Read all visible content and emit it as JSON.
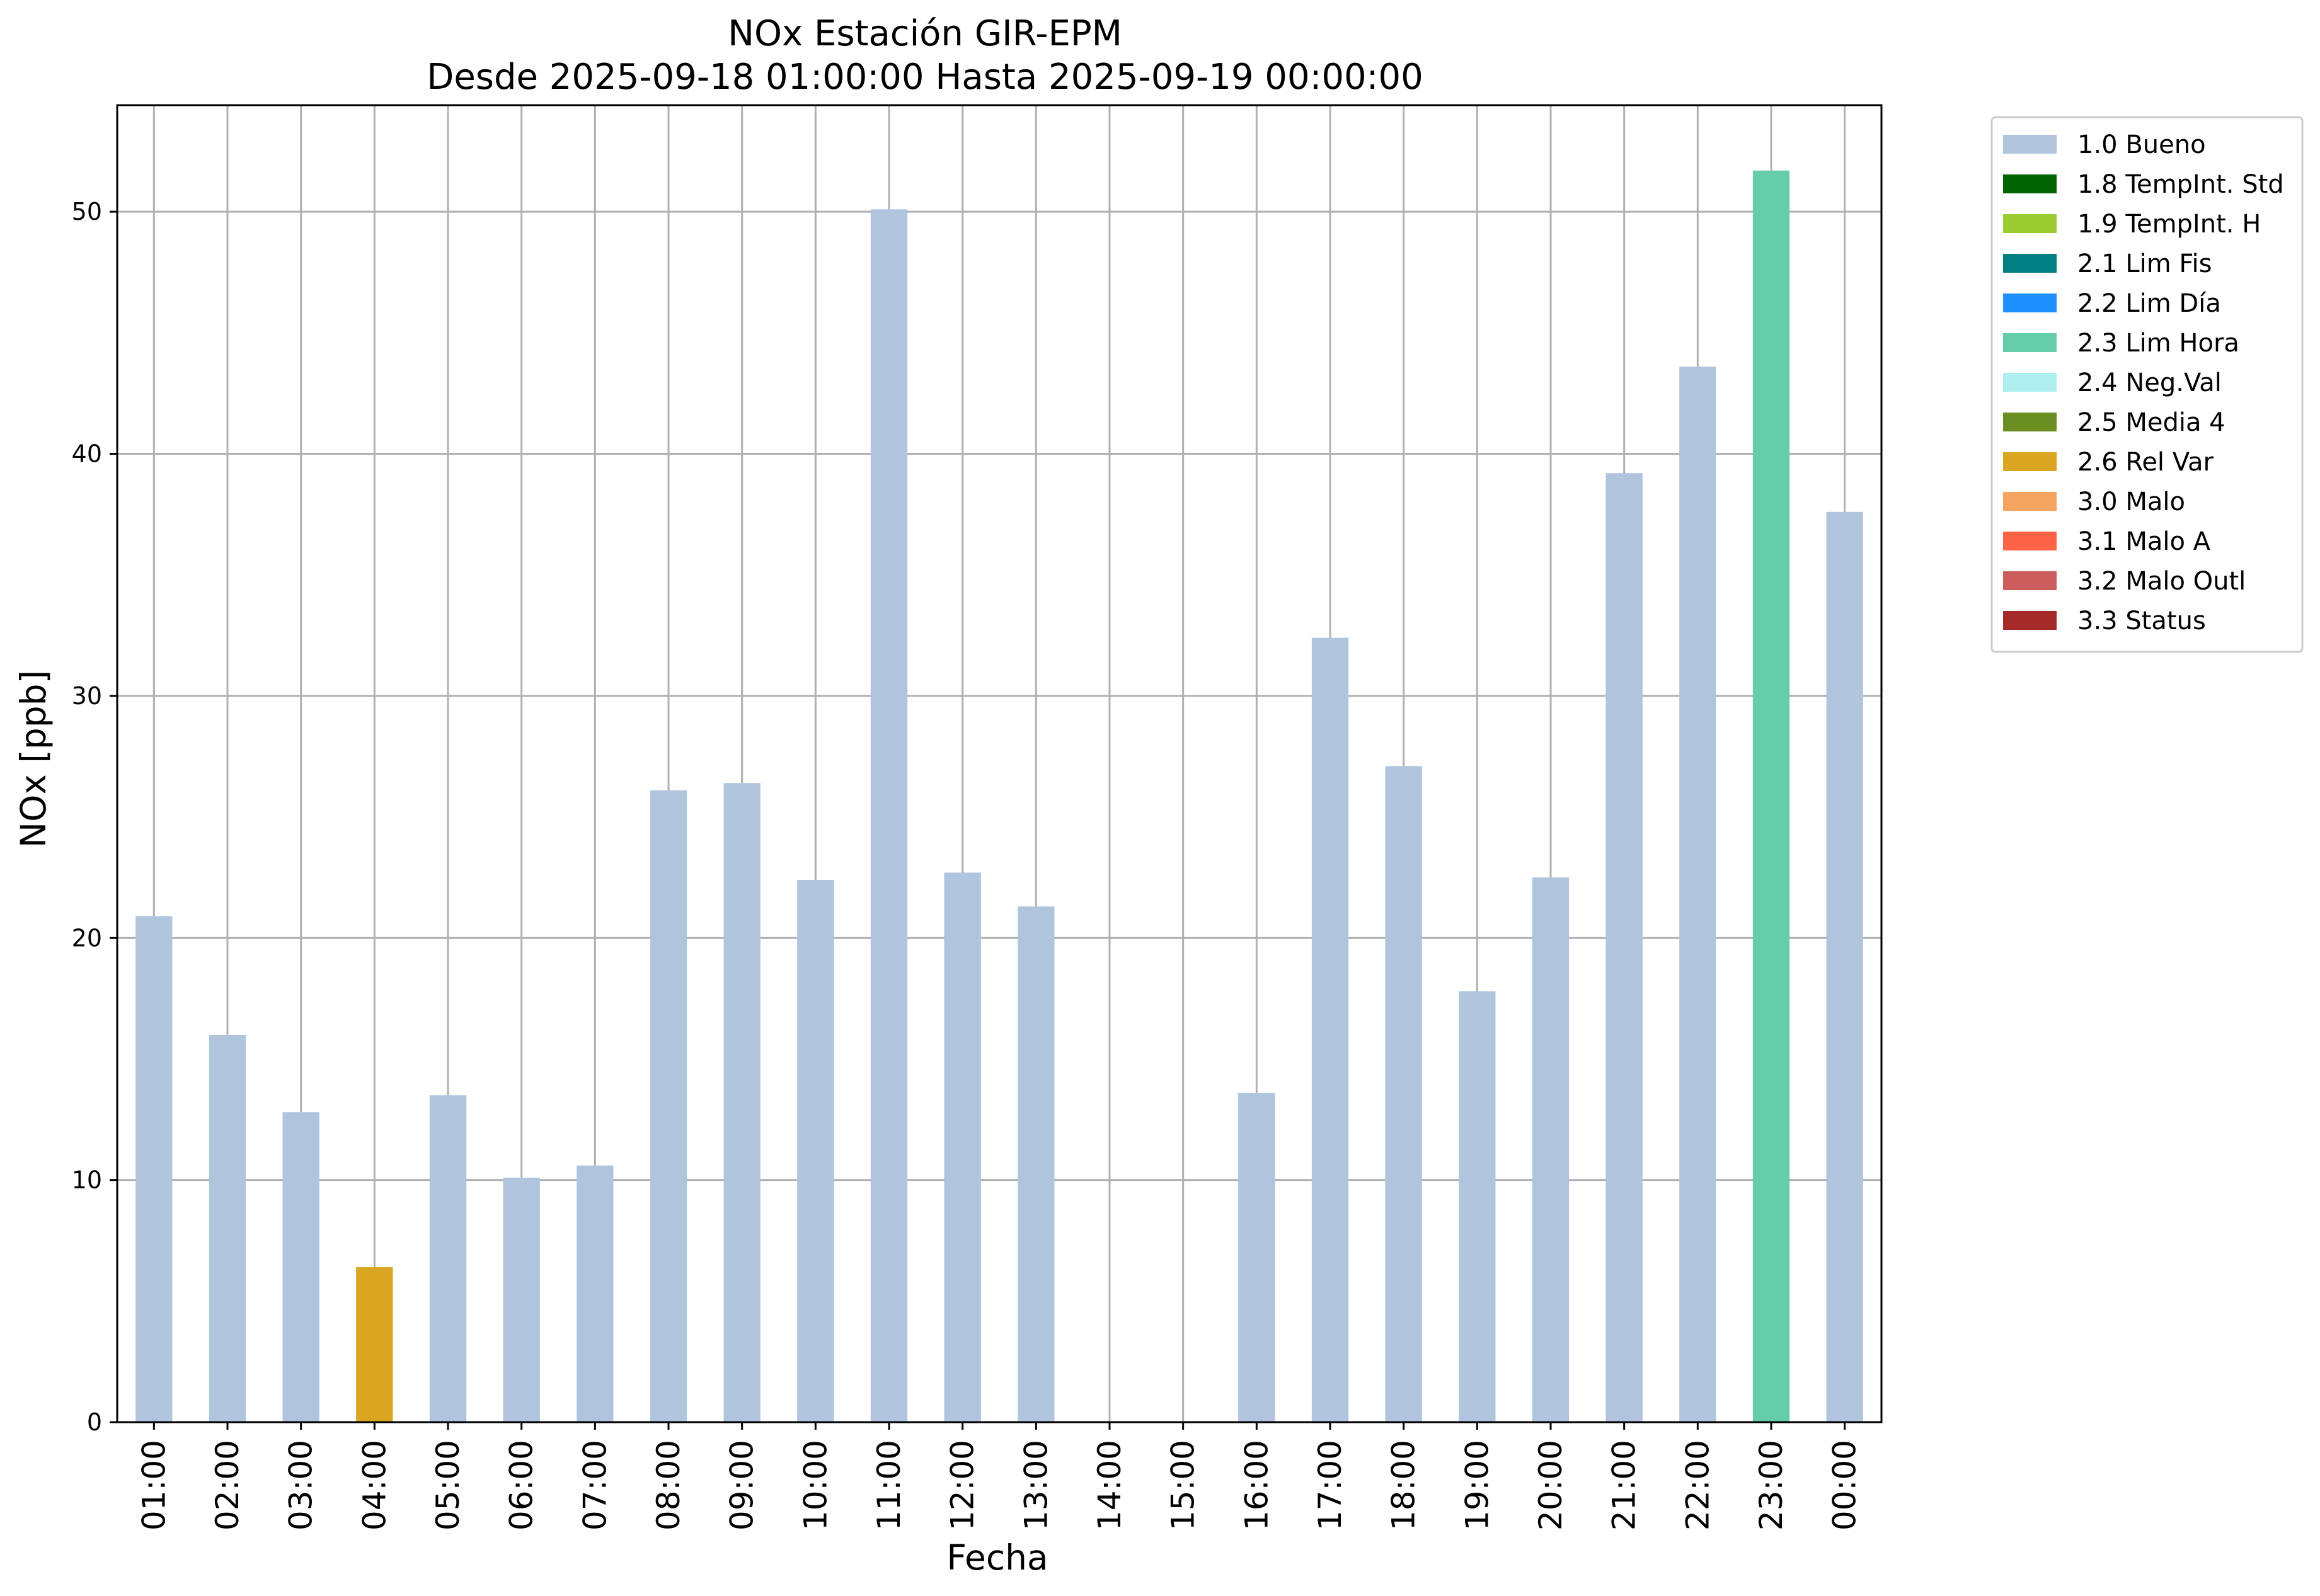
{
  "chart_data": {
    "type": "bar",
    "title": "NOx Estación GIR-EPM",
    "subtitle": "Desde 2025-09-18 01:00:00 Hasta 2025-09-19 00:00:00",
    "xlabel": "Fecha",
    "ylabel": "NOx [ppb]",
    "ylim": [
      0,
      54.4
    ],
    "yticks": [
      0,
      10,
      20,
      30,
      40,
      50
    ],
    "grid": true,
    "legend_position": "outside-top-right",
    "categories": [
      "01:00",
      "02:00",
      "03:00",
      "04:00",
      "05:00",
      "06:00",
      "07:00",
      "08:00",
      "09:00",
      "10:00",
      "11:00",
      "12:00",
      "13:00",
      "14:00",
      "15:00",
      "16:00",
      "17:00",
      "18:00",
      "19:00",
      "20:00",
      "21:00",
      "22:00",
      "23:00",
      "00:00"
    ],
    "values": [
      20.9,
      16.0,
      12.8,
      6.4,
      13.5,
      10.1,
      10.6,
      26.1,
      26.4,
      22.4,
      50.1,
      22.7,
      21.3,
      null,
      null,
      13.6,
      32.4,
      27.1,
      17.8,
      22.5,
      39.2,
      43.6,
      51.7,
      37.6
    ],
    "flags": [
      "1.0 Bueno",
      "1.0 Bueno",
      "1.0 Bueno",
      "2.6 Rel Var",
      "1.0 Bueno",
      "1.0 Bueno",
      "1.0 Bueno",
      "1.0 Bueno",
      "1.0 Bueno",
      "1.0 Bueno",
      "1.0 Bueno",
      "1.0 Bueno",
      "1.0 Bueno",
      null,
      null,
      "1.0 Bueno",
      "1.0 Bueno",
      "1.0 Bueno",
      "1.0 Bueno",
      "1.0 Bueno",
      "1.0 Bueno",
      "1.0 Bueno",
      "2.3 Lim Hora",
      "1.0 Bueno"
    ],
    "legend": [
      {
        "label": "1.0 Bueno",
        "color": "#b0c4de"
      },
      {
        "label": "1.8 TempInt. Std",
        "color": "#006400"
      },
      {
        "label": "1.9 TempInt. H",
        "color": "#9acd32"
      },
      {
        "label": "2.1 Lim Fis",
        "color": "#008080"
      },
      {
        "label": "2.2 Lim Día",
        "color": "#1e90ff"
      },
      {
        "label": "2.3 Lim Hora",
        "color": "#66cdaa"
      },
      {
        "label": "2.4 Neg.Val",
        "color": "#afeeee"
      },
      {
        "label": "2.5 Media 4",
        "color": "#6b8e23"
      },
      {
        "label": "2.6 Rel Var",
        "color": "#daa520"
      },
      {
        "label": "3.0 Malo",
        "color": "#f4a460"
      },
      {
        "label": "3.1 Malo A",
        "color": "#ff6347"
      },
      {
        "label": "3.2 Malo Outl",
        "color": "#cd5c5c"
      },
      {
        "label": "3.3 Status",
        "color": "#a52a2a"
      }
    ]
  }
}
